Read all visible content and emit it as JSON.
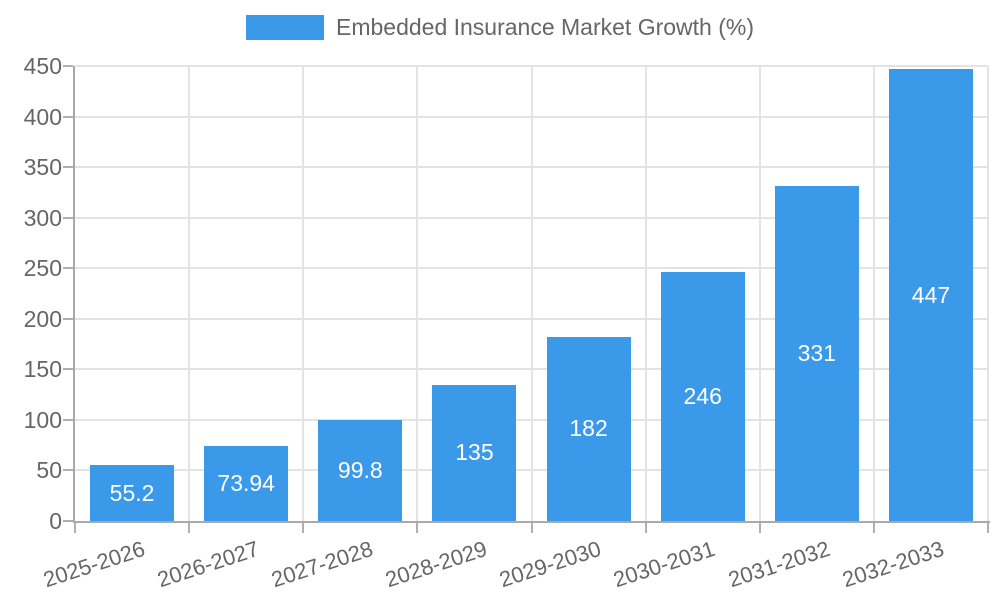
{
  "legend": {
    "label": "Embedded Insurance Market Growth (%)"
  },
  "chart_data": {
    "type": "bar",
    "title": "",
    "xlabel": "",
    "ylabel": "",
    "categories": [
      "2025-2026",
      "2026-2027",
      "2027-2028",
      "2028-2029",
      "2029-2030",
      "2030-2031",
      "2031-2032",
      "2032-2033"
    ],
    "series": [
      {
        "name": "Embedded Insurance Market Growth (%)",
        "values": [
          55.2,
          73.94,
          99.8,
          135,
          182,
          246,
          331,
          447
        ],
        "value_labels": [
          "55.2",
          "73.94",
          "99.8",
          "135",
          "182",
          "246",
          "331",
          "447"
        ]
      }
    ],
    "ylim": [
      0,
      450
    ],
    "ytick_step": 50,
    "ytick_labels": [
      "0",
      "50",
      "100",
      "150",
      "200",
      "250",
      "300",
      "350",
      "400",
      "450"
    ],
    "grid": true,
    "legend_position": "top",
    "colors": {
      "bar": "#3b99ea",
      "grid": "#e3e3e3",
      "axis": "#a9a9a9",
      "tick": "#b0b0b0",
      "tick_text": "#666666",
      "value_text": "#ffffff",
      "background": "#ffffff"
    }
  }
}
